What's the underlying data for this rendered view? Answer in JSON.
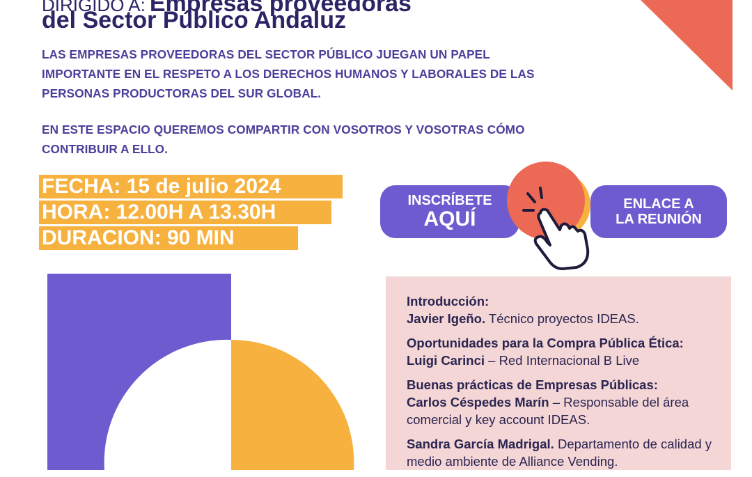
{
  "header": {
    "prefix": "DIRIGIDO A:",
    "title_line1": "Empresas proveedoras",
    "title_line2": "del Sector Público Andaluz",
    "paragraph1": "LAS EMPRESAS PROVEEDORAS DEL SECTOR PÚBLICO JUEGAN UN PAPEL IMPORTANTE EN EL RESPETO A LOS DERECHOS HUMANOS Y LABORALES DE LAS PERSONAS PRODUCTORAS DEL SUR GLOBAL.",
    "paragraph2": "EN ESTE ESPACIO QUEREMOS COMPARTIR CON VOSOTROS Y VOSOTRAS CÓMO CONTRIBUIR A ELLO."
  },
  "info": {
    "fecha": "FECHA: 15 de julio 2024",
    "hora": "HORA: 12.00H A 13.30H",
    "duracion": "DURACION:  90 MIN"
  },
  "buttons": {
    "inscribete_line1": "INSCRÍBETE",
    "inscribete_line2": "AQUÍ",
    "enlace_line1": "ENLACE A",
    "enlace_line2": "LA REUNIÓN"
  },
  "agenda": {
    "intro_heading": "Introducción:",
    "intro_name": "Javier Igeño.",
    "intro_role": " Técnico proyectos IDEAS.",
    "s1_heading": "Oportunidades para la Compra Pública Ética:",
    "s1_name": "Luigi Carinci",
    "s1_role": " – Red Internacional B Live",
    "s2_heading": "Buenas prácticas de Empresas Públicas:",
    "s2_name": "Carlos Céspedes Marín",
    "s2_role": " – Responsable del área comercial y key account IDEAS.",
    "s3_name": "Sandra García Madrigal.",
    "s3_role": " Departamento de calidad y medio ambiente de Alliance Vending."
  },
  "colors": {
    "purple": "#6f5bd0",
    "orange": "#f7b13e",
    "coral": "#ec6a55",
    "navy": "#2b2566",
    "pink_panel": "#f4d6d6"
  },
  "icons": {
    "corner": "coral-triangle",
    "click": "hand-pointer-click-icon"
  }
}
